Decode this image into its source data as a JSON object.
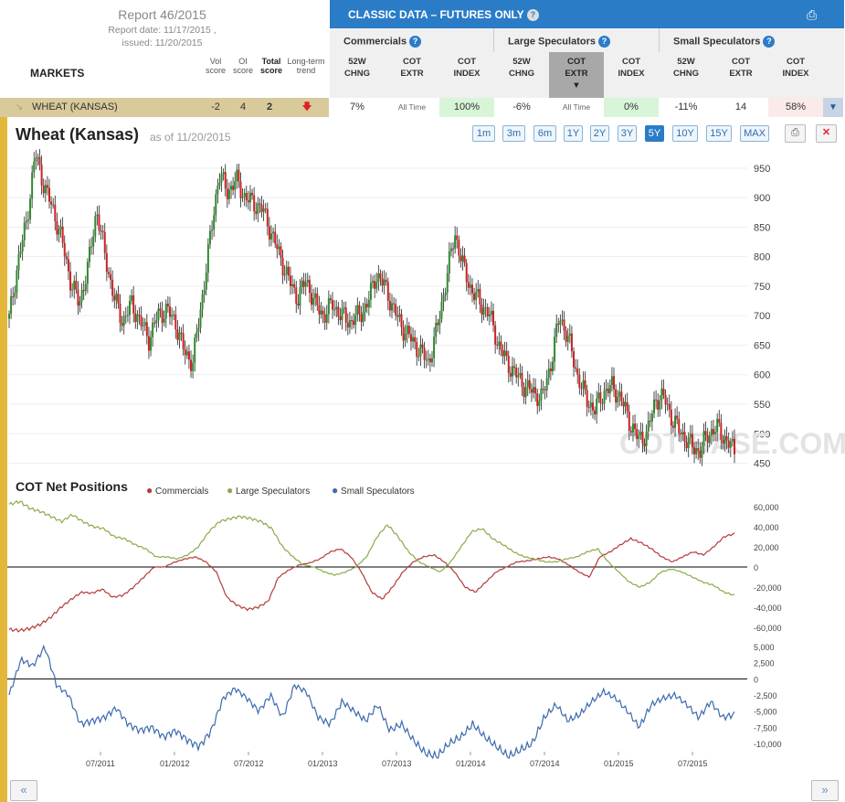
{
  "report": {
    "title": "Report 46/2015",
    "report_date": "Report date: 11/17/2015 ,",
    "issued": "issued: 11/20/2015",
    "markets_label": "MARKETS",
    "col_vol": "Vol score",
    "col_oi": "OI score",
    "col_total": "Total score",
    "col_trend": "Long-term trend"
  },
  "classic": {
    "title": "CLASSIC DATA – FUTURES ONLY",
    "groups": [
      "Commercials",
      "Large Speculators",
      "Small Speculators"
    ],
    "subheaders": [
      {
        "l1": "52W",
        "l2": "CHNG"
      },
      {
        "l1": "COT",
        "l2": "EXTR"
      },
      {
        "l1": "COT",
        "l2": "INDEX"
      },
      {
        "l1": "52W",
        "l2": "CHNG"
      },
      {
        "l1": "COT",
        "l2": "EXTR"
      },
      {
        "l1": "COT",
        "l2": "INDEX"
      },
      {
        "l1": "52W",
        "l2": "CHNG"
      },
      {
        "l1": "COT",
        "l2": "EXTR"
      },
      {
        "l1": "COT",
        "l2": "INDEX"
      }
    ]
  },
  "row": {
    "market": "WHEAT (KANSAS)",
    "vol": "-2",
    "oi": "4",
    "total": "2",
    "cells": [
      "7%",
      "All Time",
      "100%",
      "-6%",
      "All Time",
      "0%",
      "-11%",
      "14",
      "58%"
    ]
  },
  "chart": {
    "title": "Wheat (Kansas)",
    "asof": "as of 11/20/2015",
    "periods": [
      "1m",
      "3m",
      "6m",
      "1Y",
      "2Y",
      "3Y",
      "5Y",
      "10Y",
      "15Y",
      "MAX"
    ],
    "active_period": "5Y",
    "watermark": "COT BASE.COM",
    "cot_title": "COT Net Positions",
    "legend": [
      "Commercials",
      "Large Speculators",
      "Small Speculators"
    ]
  },
  "colors": {
    "commercials": "#b33a3a",
    "large": "#8aab4a",
    "small": "#3b6aad",
    "up": "#2e8b2e",
    "down": "#cc2222",
    "header_blue": "#2a7cc7"
  },
  "chart_data": [
    {
      "type": "candlestick",
      "title": "Wheat (Kansas)",
      "y_ticks": [
        950,
        900,
        850,
        800,
        750,
        700,
        650,
        600,
        550,
        500,
        450
      ],
      "ylim": [
        440,
        990
      ],
      "y": [
        695,
        790,
        860,
        975,
        920,
        880,
        830,
        760,
        720,
        780,
        880,
        800,
        730,
        690,
        720,
        690,
        660,
        700,
        710,
        690,
        640,
        620,
        720,
        830,
        940,
        910,
        930,
        900,
        890,
        880,
        840,
        800,
        760,
        730,
        760,
        720,
        700,
        720,
        700,
        690,
        700,
        720,
        770,
        750,
        710,
        680,
        660,
        640,
        620,
        680,
        760,
        840,
        780,
        740,
        720,
        700,
        650,
        620,
        600,
        580,
        570,
        560,
        620,
        700,
        660,
        600,
        560,
        540,
        570,
        580,
        560,
        520,
        490,
        500,
        560,
        560,
        520,
        500,
        480,
        470,
        500,
        510,
        490,
        470
      ]
    },
    {
      "type": "line",
      "title": "COT Net Positions",
      "y_ticks": [
        60000,
        40000,
        20000,
        0,
        -20000,
        -40000,
        -60000
      ],
      "ylim": [
        -68000,
        68000
      ],
      "series": [
        {
          "name": "Commercials",
          "values": [
            -62000,
            -63000,
            -61000,
            -57000,
            -50000,
            -40000,
            -32000,
            -25000,
            -26000,
            -22000,
            -30000,
            -28000,
            -20000,
            -10000,
            0,
            0,
            5000,
            8000,
            10000,
            5000,
            -5000,
            -30000,
            -38000,
            -42000,
            -40000,
            -34000,
            -10000,
            -3000,
            2000,
            4000,
            8000,
            15000,
            18000,
            10000,
            -5000,
            -25000,
            -32000,
            -20000,
            -5000,
            5000,
            10000,
            12000,
            5000,
            -5000,
            -20000,
            -25000,
            -15000,
            -5000,
            0,
            5000,
            6000,
            8000,
            10000,
            8000,
            2000,
            -5000,
            -10000,
            10000,
            15000,
            22000,
            28000,
            24000,
            18000,
            10000,
            5000,
            10000,
            15000,
            12000,
            20000,
            30000,
            33000
          ]
        },
        {
          "name": "Large Speculators",
          "values": [
            62000,
            65000,
            58000,
            55000,
            50000,
            45000,
            52000,
            45000,
            40000,
            38000,
            30000,
            28000,
            22000,
            18000,
            10000,
            10000,
            8000,
            12000,
            20000,
            35000,
            45000,
            48000,
            50000,
            48000,
            45000,
            38000,
            20000,
            10000,
            2000,
            0,
            -5000,
            -8000,
            -5000,
            0,
            10000,
            30000,
            42000,
            30000,
            15000,
            5000,
            0,
            -5000,
            5000,
            20000,
            35000,
            38000,
            28000,
            22000,
            15000,
            10000,
            8000,
            5000,
            5000,
            8000,
            10000,
            15000,
            18000,
            5000,
            -5000,
            -15000,
            -20000,
            -15000,
            -5000,
            -2000,
            -5000,
            -10000,
            -15000,
            -18000,
            -25000,
            -28000
          ]
        },
        {
          "name": "Small Speculators",
          "values": [
            -2500,
            3000,
            2000,
            5000,
            -1000,
            -2500,
            -7000,
            -6500,
            -6000,
            -4500,
            -7000,
            -8000,
            -7500,
            -9000,
            -8000,
            -9500,
            -10500,
            -8000,
            -3000,
            -1500,
            -3000,
            -5000,
            -2500,
            -6000,
            -1000,
            -2000,
            -6000,
            -7000,
            -3500,
            -5000,
            -6500,
            -4000,
            -8000,
            -7000,
            -9500,
            -11500,
            -12000,
            -10000,
            -9000,
            -7000,
            -9000,
            -10500,
            -12000,
            -11000,
            -10000,
            -6000,
            -4000,
            -6500,
            -5500,
            -3500,
            -2000,
            -3000,
            -5000,
            -7500,
            -4000,
            -3000,
            -2500,
            -4000,
            -6000,
            -3500,
            -6000,
            -5500
          ]
        }
      ]
    }
  ]
}
